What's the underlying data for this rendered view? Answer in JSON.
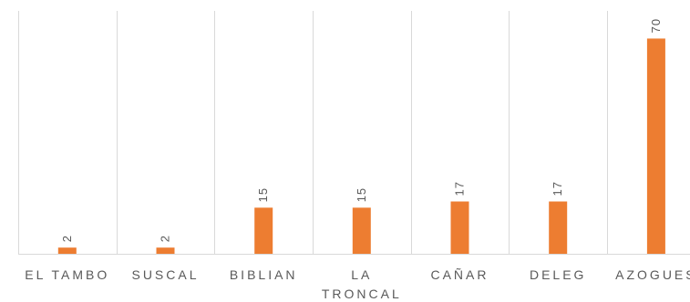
{
  "chart_data": {
    "type": "bar",
    "categories": [
      "EL TAMBO",
      "SUSCAL",
      "BIBLIAN",
      "LA TRONCAL",
      "CAÑAR",
      "DELEG",
      "AZOGUES"
    ],
    "category_lines": [
      [
        "EL TAMBO"
      ],
      [
        "SUSCAL"
      ],
      [
        "BIBLIAN"
      ],
      [
        "LA",
        "TRONCAL"
      ],
      [
        "CAÑAR"
      ],
      [
        "DELEG"
      ],
      [
        "AZOGUES"
      ]
    ],
    "values": [
      2,
      2,
      15,
      15,
      17,
      17,
      70
    ],
    "data_labels": [
      "2",
      "2",
      "15",
      "15",
      "17",
      "17",
      "70"
    ],
    "ylim": [
      0,
      79
    ],
    "grid": true,
    "grid_orientation": "vertical",
    "bar_color": "#ED7D31",
    "grid_color": "#D9D9D9",
    "text_color": "#595959"
  }
}
